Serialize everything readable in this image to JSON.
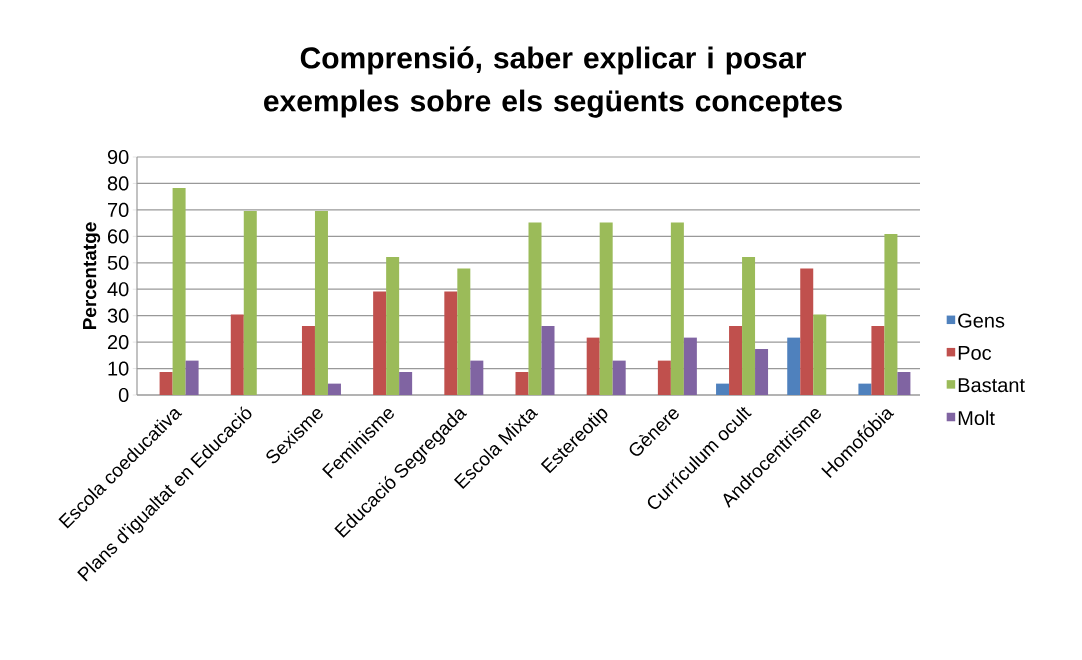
{
  "chart_data": {
    "type": "bar",
    "title": "Comprensió, saber explicar i posar exemples  sobre els següents conceptes",
    "ylabel": "Percentatge",
    "categories": [
      "Escola coeducativa",
      "Plans d'igualtat en Educació",
      "Sexisme",
      "Feminisme",
      "Educació Segregada",
      "Escola Mixta",
      "Estereotip",
      "Gènere",
      "Currículum ocult",
      "Androcentrisme",
      "Homofóbia"
    ],
    "series": [
      {
        "name": "Gens",
        "color": "#4f81bd",
        "values": [
          0,
          0,
          0,
          0,
          0,
          0,
          0,
          0,
          4.3,
          21.7,
          4.3
        ]
      },
      {
        "name": "Poc",
        "color": "#c0504d",
        "values": [
          8.7,
          30.4,
          26.1,
          39.1,
          39.1,
          8.7,
          21.7,
          13,
          26.1,
          47.8,
          26.1
        ]
      },
      {
        "name": "Bastant",
        "color": "#9bbb59",
        "values": [
          78.3,
          69.6,
          69.6,
          52.2,
          47.8,
          65.2,
          65.2,
          65.2,
          52.2,
          30.4,
          60.9
        ]
      },
      {
        "name": "Molt",
        "color": "#8064a2",
        "values": [
          13,
          0,
          4.3,
          8.7,
          13,
          26.1,
          13,
          21.7,
          17.4,
          0,
          8.7
        ]
      }
    ],
    "ylim": [
      0,
      90
    ],
    "yticks": [
      0,
      10,
      20,
      30,
      40,
      50,
      60,
      70,
      80,
      90
    ],
    "grid": "y",
    "legend": "right"
  }
}
